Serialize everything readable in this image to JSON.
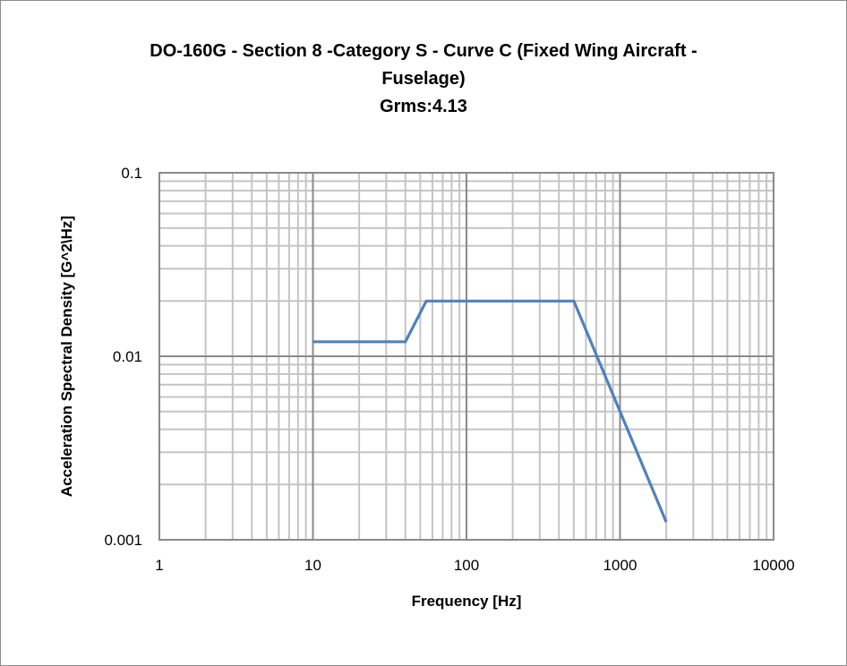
{
  "chart_data": {
    "type": "line",
    "title_lines": [
      "DO-160G - Section 8 -Category S - Curve C (Fixed Wing  Aircraft -",
      "Fuselage)",
      "Grms:4.13"
    ],
    "xlabel": "Frequency [Hz]",
    "ylabel": "Acceleration Spectral Density [G^2\\Hz]",
    "x_scale": "log",
    "y_scale": "log",
    "xlim": [
      1,
      10000
    ],
    "ylim": [
      0.001,
      0.1
    ],
    "x_ticks": [
      1,
      10,
      100,
      1000,
      10000
    ],
    "x_tick_labels": [
      "1",
      "10",
      "100",
      "1000",
      "10000"
    ],
    "y_ticks": [
      0.001,
      0.01,
      0.1
    ],
    "y_tick_labels": [
      "0.001",
      "0.01",
      "0.1"
    ],
    "grid": true,
    "legend": "none",
    "line_color": "#4f81bd",
    "series": [
      {
        "x": [
          10,
          40,
          54.7,
          500,
          2000
        ],
        "y": [
          0.012,
          0.012,
          0.02,
          0.02,
          0.00125
        ]
      }
    ]
  }
}
